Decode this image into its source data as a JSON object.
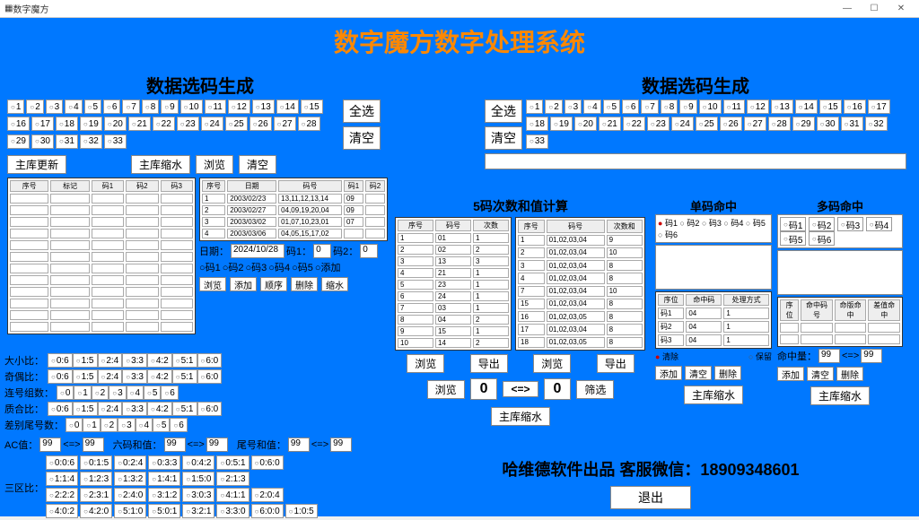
{
  "window_title": "数字魔方",
  "main_title": "数字魔方数字处理系统",
  "left_panel": {
    "title": "数据选码生成",
    "numbers": [
      "1",
      "2",
      "3",
      "4",
      "5",
      "6",
      "7",
      "8",
      "9",
      "10",
      "11",
      "12",
      "13",
      "14",
      "15",
      "16",
      "17",
      "18",
      "19",
      "20",
      "21",
      "22",
      "23",
      "24",
      "25",
      "26",
      "27",
      "28",
      "29",
      "30",
      "31",
      "32",
      "33"
    ],
    "select_all": "全选",
    "clear": "清空",
    "btn_update": "主库更新",
    "btn_shrink": "主库缩水",
    "btn_browse": "浏览",
    "btn_clear": "清空",
    "table1_headers": [
      "序号",
      "标记",
      "码1",
      "码2",
      "码3"
    ],
    "table2_headers": [
      "序号",
      "日期",
      "码号",
      "码1",
      "码2"
    ],
    "table2_rows": [
      [
        "1",
        "2003/02/23",
        "13,11,12,13,14",
        "09",
        ""
      ],
      [
        "2",
        "2003/02/27",
        "04,09,19,20,04",
        "09",
        ""
      ],
      [
        "3",
        "2003/03/02",
        "01,07,10,23,01",
        "07",
        ""
      ],
      [
        "4",
        "2003/03/06",
        "04,05,15,17,02",
        "",
        ""
      ]
    ],
    "date_label": "日期：",
    "date_value": "2024/10/28",
    "code1_label": "码1：",
    "code1_value": "0",
    "code2_label": "码2：",
    "code2_value": "0",
    "btn_browse2": "浏览",
    "btn_add": "添加",
    "btn_order": "顺序",
    "btn_delete": "删除",
    "btn_shrink2": "缩水",
    "link_codes": [
      "码1",
      "码2",
      "码3",
      "码4",
      "码5"
    ],
    "link_add": "添加"
  },
  "right_panel": {
    "title": "数据选码生成",
    "numbers": [
      "1",
      "2",
      "3",
      "4",
      "5",
      "6",
      "7",
      "8",
      "9",
      "10",
      "11",
      "12",
      "13",
      "14",
      "15",
      "16",
      "17",
      "18",
      "19",
      "20",
      "21",
      "22",
      "23",
      "24",
      "25",
      "26",
      "27",
      "28",
      "29",
      "30",
      "31",
      "32",
      "33"
    ],
    "select_all": "全选",
    "clear": "清空"
  },
  "middle": {
    "title": "5码次数和值计算",
    "table_l_headers": [
      "序号",
      "码号",
      "次数"
    ],
    "table_l_rows": [
      [
        "1",
        "01",
        "1"
      ],
      [
        "2",
        "02",
        "2"
      ],
      [
        "3",
        "13",
        "3"
      ],
      [
        "4",
        "21",
        "1"
      ],
      [
        "5",
        "23",
        "1"
      ],
      [
        "6",
        "24",
        "1"
      ],
      [
        "7",
        "03",
        "1"
      ],
      [
        "8",
        "04",
        "2"
      ],
      [
        "9",
        "15",
        "1"
      ],
      [
        "10",
        "14",
        "2"
      ]
    ],
    "table_r_headers": [
      "序号",
      "码号",
      "次数和"
    ],
    "table_r_rows": [
      [
        "1",
        "01,02,03,04",
        "9"
      ],
      [
        "2",
        "01,02,03,04",
        "10"
      ],
      [
        "3",
        "01,02,03,04",
        "8"
      ],
      [
        "4",
        "01,02,03,04",
        "8"
      ],
      [
        "7",
        "01,02,03,04",
        "10"
      ],
      [
        "15",
        "01,02,03,04",
        "8"
      ],
      [
        "16",
        "01,02,03,05",
        "8"
      ],
      [
        "17",
        "01,02,03,04",
        "8"
      ],
      [
        "18",
        "01,02,03,05",
        "8"
      ]
    ],
    "btn_browse": "浏览",
    "btn_export": "导出",
    "btn_browse2": "浏览",
    "btn_export2": "导出",
    "btn_browse3": "浏览",
    "zero1": "0",
    "arrow": "<=>",
    "zero2": "0",
    "btn_filter": "筛选",
    "btn_mainshrink": "主库缩水"
  },
  "right_hit": {
    "single_title": "单码命中",
    "multi_title": "多码命中",
    "single_opts": [
      "码1",
      "码2",
      "码3",
      "码4",
      "码5",
      "码6"
    ],
    "multi_opts": [
      "码1",
      "码2",
      "码3",
      "码4",
      "码5",
      "码6"
    ],
    "tbl_headers": [
      "序位",
      "命中码",
      "处理方式"
    ],
    "tbl_rows": [
      [
        "码1",
        "04",
        "1"
      ],
      [
        "码2",
        "04",
        "1"
      ],
      [
        "码3",
        "04",
        "1"
      ]
    ],
    "tbl2_headers": [
      "序位",
      "命中码号",
      "命版命中",
      "差值命中"
    ],
    "opt_clear": "清除",
    "opt_keep": "保留",
    "hit_label": "命中量：",
    "hit_v1": "99",
    "hit_v2": "99",
    "btn_add": "添加",
    "btn_clear": "清空",
    "btn_delete": "删除",
    "btn_shrink": "主库缩水"
  },
  "ratios": {
    "daxiao": "大小比：",
    "qiou": "奇偶比：",
    "lianhao": "连号组数：",
    "zhihe": "质合比：",
    "chabie": "差别尾号数：",
    "ac": "AC值：",
    "liuma": "六码和值：",
    "weihao": "尾号和值：",
    "sanqu": "三区比：",
    "vals06": [
      "0:6",
      "1:5",
      "2:4",
      "3:3",
      "4:2",
      "5:1",
      "6:0"
    ],
    "vals0_6": [
      "0",
      "1",
      "2",
      "3",
      "4",
      "5",
      "6"
    ],
    "v99": "99",
    "three_zone": [
      [
        "0:0:6",
        "0:1:5",
        "0:2:4",
        "0:3:3",
        "0:4:2",
        "0:5:1",
        "0:6:0"
      ],
      [
        "1:1:4",
        "1:2:3",
        "1:3:2",
        "1:4:1",
        "1:5:0",
        "2:1:3"
      ],
      [
        "2:2:2",
        "2:3:1",
        "2:4:0",
        "3:1:2",
        "3:0:3",
        "4:1:1",
        "2:0:4"
      ],
      [
        "4:0:2",
        "4:2:0",
        "5:1:0",
        "5:0:1",
        "3:2:1",
        "3:3:0",
        "6:0:0",
        "1:0:5"
      ]
    ]
  },
  "footer": {
    "credit": "哈维德软件出品 客服微信：18909348601",
    "exit": "退出"
  }
}
